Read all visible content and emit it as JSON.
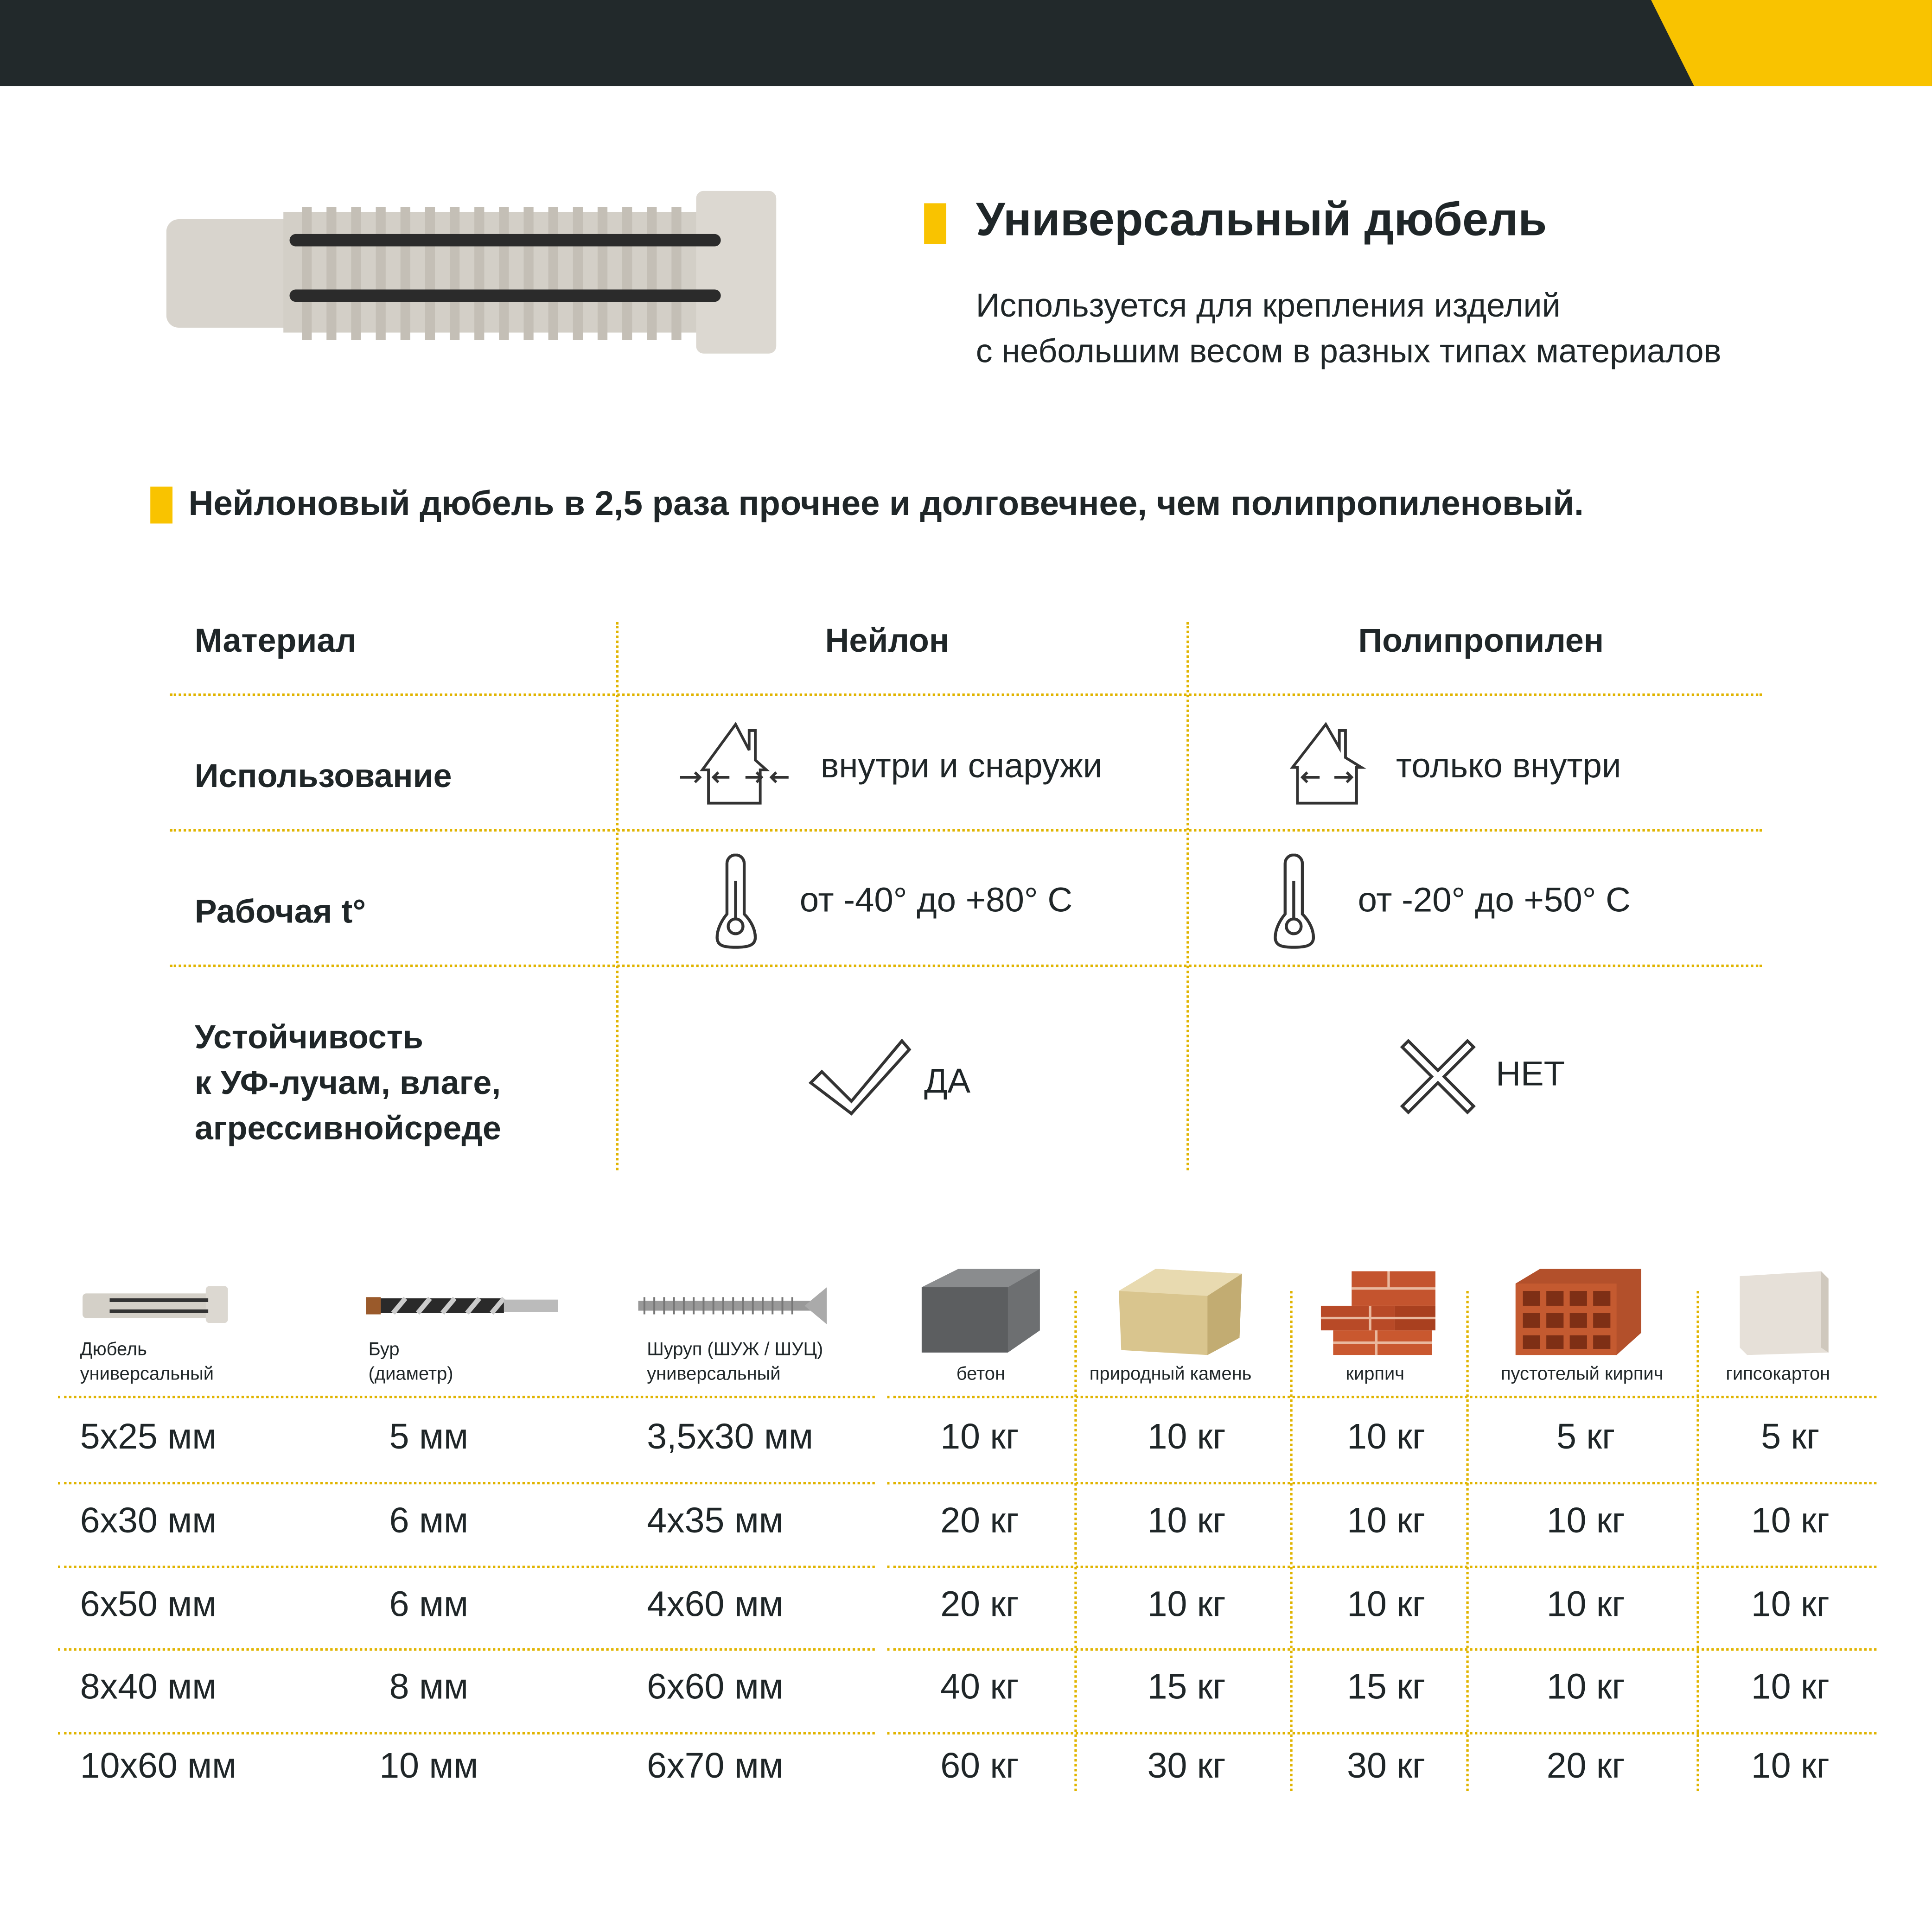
{
  "colors": {
    "dark": "#22292b",
    "accent": "#f9c300",
    "divider": "#e0b400"
  },
  "product": {
    "title": "Универсальный дюбель",
    "subtitle_line1": "Используется для крепления  изделий",
    "subtitle_line2": "с небольшим весом в разных типах материалов"
  },
  "headline": "Нейлоновый дюбель в 2,5 раза прочнее и долговечнее, чем полипропиленовый.",
  "comparison": {
    "headers": [
      "Материал",
      "Нейлон",
      "Полипропилен"
    ],
    "rows": [
      {
        "label": "Использование",
        "nylon": "внутри и снаружи",
        "pp": "только  внутри",
        "icon": "house-icon"
      },
      {
        "label": "Рабочая t°",
        "nylon": "от -40° до +80° С",
        "pp": "от -20° до +50° С",
        "icon": "thermometer-icon"
      },
      {
        "label_lines": [
          "Устойчивость",
          "к УФ-лучам, влаге,",
          "агрессивнойсреде"
        ],
        "nylon": "ДА",
        "pp": "НЕТ",
        "nylon_icon": "check-icon",
        "pp_icon": "cross-icon"
      }
    ]
  },
  "specs": {
    "headers": [
      {
        "lines": [
          "Дюбель",
          "универсальный"
        ]
      },
      {
        "lines": [
          "Бур",
          "(диаметр)"
        ]
      },
      {
        "lines": [
          "Шуруп (ШУЖ / ШУЦ)",
          "универсальный"
        ]
      },
      {
        "lines": [
          "бетон"
        ]
      },
      {
        "lines": [
          "природный камень"
        ]
      },
      {
        "lines": [
          "кирпич"
        ]
      },
      {
        "lines": [
          "пустотелый кирпич"
        ]
      },
      {
        "lines": [
          "гипсокартон"
        ]
      }
    ],
    "rows": [
      [
        "5x25 мм",
        "5 мм",
        "3,5x30 мм",
        "10 кг",
        "10 кг",
        "10 кг",
        "5 кг",
        "5 кг"
      ],
      [
        "6x30 мм",
        "6 мм",
        "4x35 мм",
        "20 кг",
        "10 кг",
        "10 кг",
        "10 кг",
        "10 кг"
      ],
      [
        "6x50 мм",
        "6 мм",
        "4x60 мм",
        "20 кг",
        "10 кг",
        "10 кг",
        "10 кг",
        "10 кг"
      ],
      [
        "8x40 мм",
        "8 мм",
        "6x60 мм",
        "40 кг",
        "15 кг",
        "15 кг",
        "10 кг",
        "10 кг"
      ],
      [
        "10x60 мм",
        "10 мм",
        "6x70 мм",
        "60 кг",
        "30 кг",
        "30 кг",
        "20 кг",
        "10 кг"
      ]
    ]
  }
}
